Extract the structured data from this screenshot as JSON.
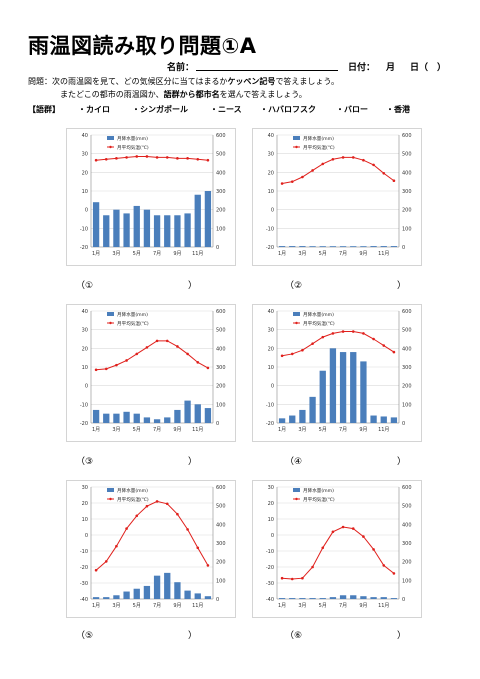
{
  "header": {
    "title": "雨温図読み取り問題①A",
    "name_label": "名前：",
    "date_label": "日付：",
    "month_label": "月",
    "day_label": "日（　）"
  },
  "question": {
    "line1_a": "問題：次の雨温図を見て、どの気候区分に当てはまるか",
    "line1_b": "ケッペン記号",
    "line1_c": "で答えましょう。",
    "line2_a": "またどこの都市の雨温図か、",
    "line2_b": "語群から都市名",
    "line2_c": "を選んで答えましょう。"
  },
  "vocab": {
    "label": "【語群】",
    "items": [
      "・カイロ",
      "・シンガポール",
      "・ニース",
      "・ハバロフスク",
      "・バロー",
      "・香港"
    ]
  },
  "legend": {
    "precip": "月降水量(mm)",
    "temp": "月平均気温(℃)"
  },
  "x_tick_labels": [
    "1月",
    "3月",
    "5月",
    "7月",
    "9月",
    "11月"
  ],
  "colors": {
    "bar": "#4a7ebb",
    "line": "#e0201c",
    "grid": "#d9d9d9"
  },
  "chart_data": [
    {
      "type": "bar+line",
      "answer_open": "（①",
      "answer_close": "）",
      "precip": [
        240,
        170,
        200,
        180,
        220,
        200,
        170,
        170,
        170,
        180,
        280,
        300
      ],
      "temp": [
        26.5,
        27,
        27.5,
        28,
        28.5,
        28.5,
        28,
        28,
        27.5,
        27.5,
        27,
        26.5
      ],
      "temp_axis": [
        -20,
        40
      ],
      "temp_ticks": [
        -20,
        -10,
        0,
        10,
        20,
        30,
        40
      ],
      "precip_axis": [
        0,
        600
      ],
      "precip_ticks": [
        0,
        100,
        200,
        300,
        400,
        500,
        600
      ]
    },
    {
      "type": "bar+line",
      "answer_open": "（②",
      "answer_close": "）",
      "precip": [
        5,
        5,
        5,
        0,
        0,
        0,
        0,
        0,
        0,
        5,
        5,
        5
      ],
      "temp": [
        14,
        15,
        17.5,
        21,
        24.5,
        27,
        28,
        28,
        26.5,
        24,
        19.5,
        15.5
      ],
      "temp_axis": [
        -20,
        40
      ],
      "temp_ticks": [
        -20,
        -10,
        0,
        10,
        20,
        30,
        40
      ],
      "precip_axis": [
        0,
        600
      ],
      "precip_ticks": [
        0,
        100,
        200,
        300,
        400,
        500,
        600
      ]
    },
    {
      "type": "bar+line",
      "answer_open": "（③",
      "answer_close": "）",
      "precip": [
        70,
        50,
        50,
        60,
        50,
        30,
        20,
        30,
        70,
        120,
        100,
        80
      ],
      "temp": [
        8.5,
        9,
        11,
        13.5,
        17,
        20.5,
        24,
        24,
        21,
        17,
        12.5,
        9.5
      ],
      "temp_axis": [
        -20,
        40
      ],
      "temp_ticks": [
        -20,
        -10,
        0,
        10,
        20,
        30,
        40
      ],
      "precip_axis": [
        0,
        600
      ],
      "precip_ticks": [
        0,
        100,
        200,
        300,
        400,
        500,
        600
      ]
    },
    {
      "type": "bar+line",
      "answer_open": "（④",
      "answer_close": "）",
      "precip": [
        25,
        40,
        70,
        140,
        280,
        400,
        380,
        380,
        330,
        40,
        35,
        30
      ],
      "temp": [
        16,
        17,
        19,
        22.5,
        26,
        28,
        29,
        29,
        28,
        25,
        21.5,
        18
      ],
      "temp_axis": [
        -20,
        40
      ],
      "temp_ticks": [
        -20,
        -10,
        0,
        10,
        20,
        30,
        40
      ],
      "precip_axis": [
        0,
        600
      ],
      "precip_ticks": [
        0,
        100,
        200,
        300,
        400,
        500,
        600
      ]
    },
    {
      "type": "bar+line",
      "answer_open": "（⑤",
      "answer_close": "）",
      "precip": [
        10,
        10,
        20,
        40,
        55,
        70,
        125,
        140,
        90,
        45,
        30,
        15
      ],
      "temp": [
        -22,
        -16.5,
        -7,
        4,
        12,
        18,
        21,
        19.5,
        13,
        3.5,
        -8,
        -19
      ],
      "temp_axis": [
        -40,
        30
      ],
      "temp_ticks": [
        -40,
        -30,
        -20,
        -10,
        0,
        10,
        20,
        30
      ],
      "precip_axis": [
        0,
        600
      ],
      "precip_ticks": [
        0,
        100,
        200,
        300,
        400,
        500,
        600
      ]
    },
    {
      "type": "bar+line",
      "answer_open": "（⑥",
      "answer_close": "）",
      "precip": [
        5,
        5,
        5,
        5,
        5,
        10,
        20,
        20,
        15,
        10,
        10,
        5
      ],
      "temp": [
        -27,
        -27.5,
        -27,
        -20,
        -8,
        2,
        5,
        4,
        -1,
        -9,
        -19,
        -24
      ],
      "temp_axis": [
        -40,
        30
      ],
      "temp_ticks": [
        -40,
        -30,
        -20,
        -10,
        0,
        10,
        20,
        30
      ],
      "precip_axis": [
        0,
        600
      ],
      "precip_ticks": [
        0,
        100,
        200,
        300,
        400,
        500,
        600
      ]
    }
  ]
}
